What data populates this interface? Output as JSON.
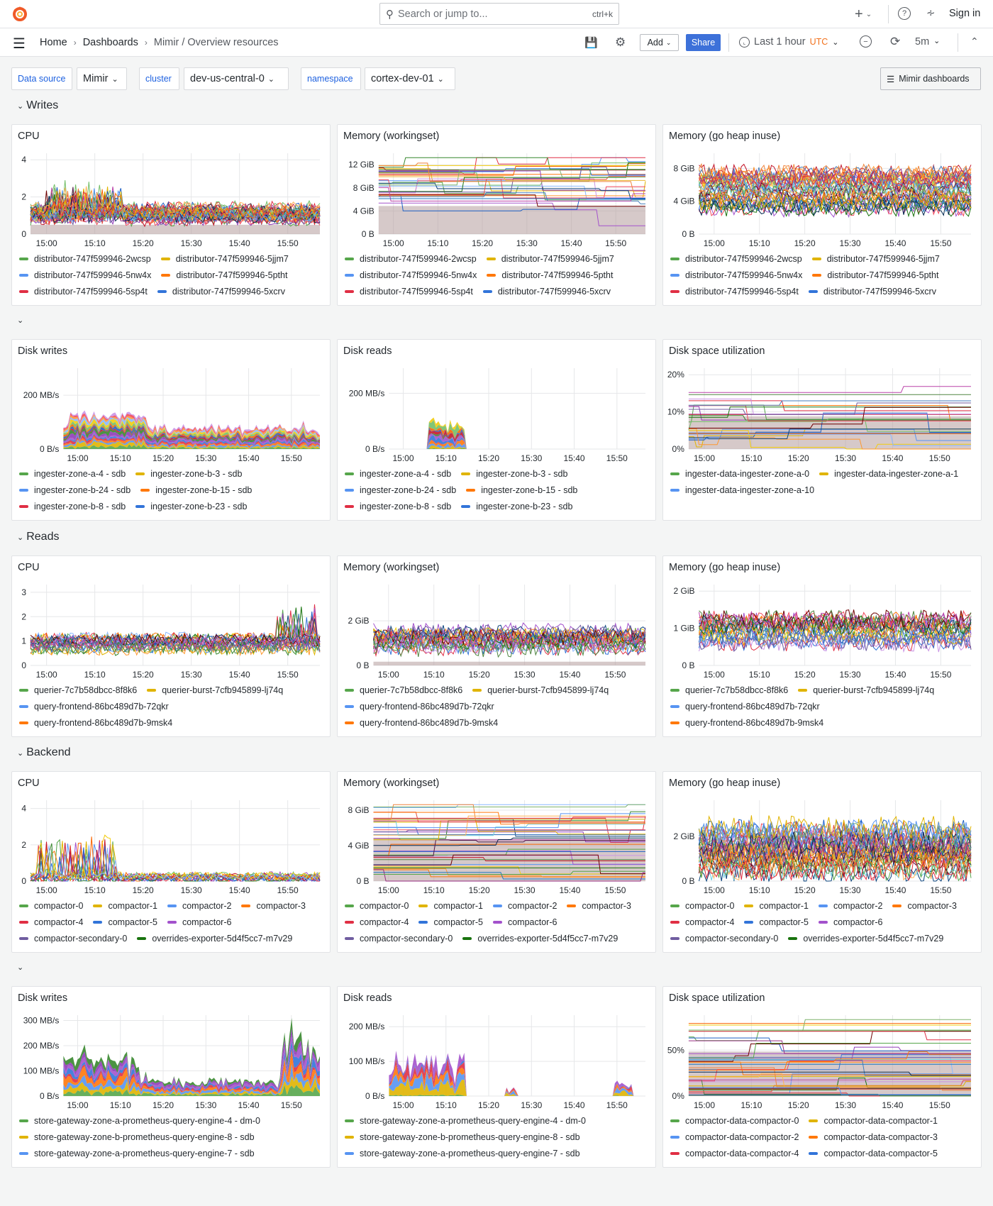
{
  "topbar": {
    "search_placeholder": "Search or jump to...",
    "search_shortcut": "ctrl+k",
    "sign_in": "Sign in"
  },
  "breadcrumb": {
    "home": "Home",
    "dashboards": "Dashboards",
    "current": "Mimir / Overview resources"
  },
  "toolbar": {
    "add": "Add",
    "share": "Share",
    "time_range": "Last 1 hour",
    "timezone": "UTC",
    "refresh": "5m"
  },
  "variables": {
    "datasource_label": "Data source",
    "datasource_value": "Mimir",
    "cluster_label": "cluster",
    "cluster_value": "dev-us-central-0",
    "namespace_label": "namespace",
    "namespace_value": "cortex-dev-01",
    "dashboards_link": "Mimir dashboards"
  },
  "sections": {
    "writes": "Writes",
    "reads": "Reads",
    "backend": "Backend"
  },
  "colors": {
    "accent": "#3d71d9",
    "utc": "#f2711c",
    "fill": "#b49c9c"
  },
  "time_range": {
    "from": "14:56:40",
    "to": "15:56:40"
  },
  "chart_data": [
    {
      "title": "CPU",
      "type": "line",
      "ylim": [
        0,
        4.2
      ],
      "y_ticks": [
        {
          "v": 0,
          "l": "0"
        },
        {
          "v": 2,
          "l": "2"
        },
        {
          "v": 4,
          "l": "4"
        }
      ],
      "x_ticks": [
        "15:00",
        "15:10",
        "15:20",
        "15:30",
        "15:40",
        "15:50"
      ],
      "legend": [
        {
          "label": "distributor-747f599946-2wcsp",
          "color": "#56A64B"
        },
        {
          "label": "distributor-747f599946-5jjm7",
          "color": "#E0B400"
        },
        {
          "label": "distributor-747f599946-5nw4x",
          "color": "#5794F2"
        },
        {
          "label": "distributor-747f599946-5ptht",
          "color": "#FF780A"
        },
        {
          "label": "distributor-747f599946-5sp4t",
          "color": "#E02F44"
        },
        {
          "label": "distributor-747f599946-5xcrv",
          "color": "#3274D9"
        }
      ]
    },
    {
      "title": "Memory (workingset)",
      "type": "step",
      "ylim": [
        0,
        13.5
      ],
      "y_ticks": [
        {
          "v": 0,
          "l": "0 B"
        },
        {
          "v": 4,
          "l": "4 GiB"
        },
        {
          "v": 8,
          "l": "8 GiB"
        },
        {
          "v": 12,
          "l": "12 GiB"
        }
      ],
      "x_ticks": [
        "15:00",
        "15:10",
        "15:20",
        "15:30",
        "15:40",
        "15:50"
      ],
      "legend": [
        {
          "label": "distributor-747f599946-2wcsp",
          "color": "#56A64B"
        },
        {
          "label": "distributor-747f599946-5jjm7",
          "color": "#E0B400"
        },
        {
          "label": "distributor-747f599946-5nw4x",
          "color": "#5794F2"
        },
        {
          "label": "distributor-747f599946-5ptht",
          "color": "#FF780A"
        },
        {
          "label": "distributor-747f599946-5sp4t",
          "color": "#E02F44"
        },
        {
          "label": "distributor-747f599946-5xcrv",
          "color": "#3274D9"
        }
      ]
    },
    {
      "title": "Memory (go heap inuse)",
      "type": "line",
      "ylim": [
        0,
        9.5
      ],
      "y_ticks": [
        {
          "v": 0,
          "l": "0 B"
        },
        {
          "v": 4,
          "l": "4 GiB"
        },
        {
          "v": 8,
          "l": "8 GiB"
        }
      ],
      "x_ticks": [
        "15:00",
        "15:10",
        "15:20",
        "15:30",
        "15:40",
        "15:50"
      ],
      "legend": [
        {
          "label": "distributor-747f599946-2wcsp",
          "color": "#56A64B"
        },
        {
          "label": "distributor-747f599946-5jjm7",
          "color": "#E0B400"
        },
        {
          "label": "distributor-747f599946-5nw4x",
          "color": "#5794F2"
        },
        {
          "label": "distributor-747f599946-5ptht",
          "color": "#FF780A"
        },
        {
          "label": "distributor-747f599946-5sp4t",
          "color": "#E02F44"
        },
        {
          "label": "distributor-747f599946-5xcrv",
          "color": "#3274D9"
        }
      ]
    },
    {
      "title": "Disk writes",
      "type": "stacked",
      "ylim": [
        0,
        290
      ],
      "y_ticks": [
        {
          "v": 0,
          "l": "0 B/s"
        },
        {
          "v": 200,
          "l": "200 MB/s"
        }
      ],
      "x_ticks": [
        "15:00",
        "15:10",
        "15:20",
        "15:30",
        "15:40",
        "15:50"
      ],
      "legend": [
        {
          "label": "ingester-zone-a-4 - sdb",
          "color": "#56A64B"
        },
        {
          "label": "ingester-zone-b-3 - sdb",
          "color": "#E0B400"
        },
        {
          "label": "ingester-zone-b-24 - sdb",
          "color": "#5794F2"
        },
        {
          "label": "ingester-zone-b-15 - sdb",
          "color": "#FF780A"
        },
        {
          "label": "ingester-zone-b-8 - sdb",
          "color": "#E02F44"
        },
        {
          "label": "ingester-zone-b-23 - sdb",
          "color": "#3274D9"
        }
      ]
    },
    {
      "title": "Disk reads",
      "type": "stacked",
      "ylim": [
        0,
        280
      ],
      "y_ticks": [
        {
          "v": 0,
          "l": "0 B/s"
        },
        {
          "v": 200,
          "l": "200 MB/s"
        }
      ],
      "x_ticks": [
        "15:00",
        "15:10",
        "15:20",
        "15:30",
        "15:40",
        "15:50"
      ],
      "legend": [
        {
          "label": "ingester-zone-a-4 - sdb",
          "color": "#56A64B"
        },
        {
          "label": "ingester-zone-b-3 - sdb",
          "color": "#E0B400"
        },
        {
          "label": "ingester-zone-b-24 - sdb",
          "color": "#5794F2"
        },
        {
          "label": "ingester-zone-b-15 - sdb",
          "color": "#FF780A"
        },
        {
          "label": "ingester-zone-b-8 - sdb",
          "color": "#E02F44"
        },
        {
          "label": "ingester-zone-b-23 - sdb",
          "color": "#3274D9"
        }
      ]
    },
    {
      "title": "Disk space utilization",
      "type": "step",
      "ylim": [
        0,
        21
      ],
      "y_ticks": [
        {
          "v": 0,
          "l": "0%"
        },
        {
          "v": 10,
          "l": "10%"
        },
        {
          "v": 20,
          "l": "20%"
        }
      ],
      "x_ticks": [
        "15:00",
        "15:10",
        "15:20",
        "15:30",
        "15:40",
        "15:50"
      ],
      "legend": [
        {
          "label": "ingester-data-ingester-zone-a-0",
          "color": "#56A64B"
        },
        {
          "label": "ingester-data-ingester-zone-a-1",
          "color": "#E0B400"
        },
        {
          "label": "ingester-data-ingester-zone-a-10",
          "color": "#5794F2"
        }
      ]
    },
    {
      "title": "CPU",
      "type": "line",
      "ylim": [
        0,
        3.2
      ],
      "y_ticks": [
        {
          "v": 0,
          "l": "0"
        },
        {
          "v": 1,
          "l": "1"
        },
        {
          "v": 2,
          "l": "2"
        },
        {
          "v": 3,
          "l": "3"
        }
      ],
      "x_ticks": [
        "15:00",
        "15:10",
        "15:20",
        "15:30",
        "15:40",
        "15:50"
      ],
      "legend": [
        {
          "label": "querier-7c7b58dbcc-8f8k6",
          "color": "#56A64B"
        },
        {
          "label": "querier-burst-7cfb945899-lj74q",
          "color": "#E0B400"
        },
        {
          "label": "query-frontend-86bc489d7b-72qkr",
          "color": "#5794F2"
        },
        {
          "label": "query-frontend-86bc489d7b-9msk4",
          "color": "#FF780A"
        }
      ]
    },
    {
      "title": "Memory (workingset)",
      "type": "line",
      "ylim": [
        0,
        3.5
      ],
      "y_ticks": [
        {
          "v": 0,
          "l": "0 B"
        },
        {
          "v": 2,
          "l": "2 GiB"
        }
      ],
      "x_ticks": [
        "15:00",
        "15:10",
        "15:20",
        "15:30",
        "15:40",
        "15:50"
      ],
      "legend": [
        {
          "label": "querier-7c7b58dbcc-8f8k6",
          "color": "#56A64B"
        },
        {
          "label": "querier-burst-7cfb945899-lj74q",
          "color": "#E0B400"
        },
        {
          "label": "query-frontend-86bc489d7b-72qkr",
          "color": "#5794F2"
        },
        {
          "label": "query-frontend-86bc489d7b-9msk4",
          "color": "#FF780A"
        }
      ]
    },
    {
      "title": "Memory (go heap inuse)",
      "type": "line",
      "ylim": [
        0,
        2.1
      ],
      "y_ticks": [
        {
          "v": 0,
          "l": "0 B"
        },
        {
          "v": 1,
          "l": "1 GiB"
        },
        {
          "v": 2,
          "l": "2 GiB"
        }
      ],
      "x_ticks": [
        "15:00",
        "15:10",
        "15:20",
        "15:30",
        "15:40",
        "15:50"
      ],
      "legend": [
        {
          "label": "querier-7c7b58dbcc-8f8k6",
          "color": "#56A64B"
        },
        {
          "label": "querier-burst-7cfb945899-lj74q",
          "color": "#E0B400"
        },
        {
          "label": "query-frontend-86bc489d7b-72qkr",
          "color": "#5794F2"
        },
        {
          "label": "query-frontend-86bc489d7b-9msk4",
          "color": "#FF780A"
        }
      ]
    },
    {
      "title": "CPU",
      "type": "line",
      "ylim": [
        0,
        4.3
      ],
      "y_ticks": [
        {
          "v": 0,
          "l": "0"
        },
        {
          "v": 2,
          "l": "2"
        },
        {
          "v": 4,
          "l": "4"
        }
      ],
      "x_ticks": [
        "15:00",
        "15:10",
        "15:20",
        "15:30",
        "15:40",
        "15:50"
      ],
      "legend": [
        {
          "label": "compactor-0",
          "color": "#56A64B"
        },
        {
          "label": "compactor-1",
          "color": "#E0B400"
        },
        {
          "label": "compactor-2",
          "color": "#5794F2"
        },
        {
          "label": "compactor-3",
          "color": "#FF780A"
        },
        {
          "label": "compactor-4",
          "color": "#E02F44"
        },
        {
          "label": "compactor-5",
          "color": "#3274D9"
        },
        {
          "label": "compactor-6",
          "color": "#A352CC"
        },
        {
          "label": "compactor-secondary-0",
          "color": "#705DA0"
        },
        {
          "label": "overrides-exporter-5d4f5cc7-m7v29",
          "color": "#19730E"
        }
      ]
    },
    {
      "title": "Memory (workingset)",
      "type": "step",
      "ylim": [
        0,
        8.8
      ],
      "y_ticks": [
        {
          "v": 0,
          "l": "0 B"
        },
        {
          "v": 4,
          "l": "4 GiB"
        },
        {
          "v": 8,
          "l": "8 GiB"
        }
      ],
      "x_ticks": [
        "15:00",
        "15:10",
        "15:20",
        "15:30",
        "15:40",
        "15:50"
      ],
      "legend": [
        {
          "label": "compactor-0",
          "color": "#56A64B"
        },
        {
          "label": "compactor-1",
          "color": "#E0B400"
        },
        {
          "label": "compactor-2",
          "color": "#5794F2"
        },
        {
          "label": "compactor-3",
          "color": "#FF780A"
        },
        {
          "label": "compactor-4",
          "color": "#E02F44"
        },
        {
          "label": "compactor-5",
          "color": "#3274D9"
        },
        {
          "label": "compactor-6",
          "color": "#A352CC"
        },
        {
          "label": "compactor-secondary-0",
          "color": "#705DA0"
        },
        {
          "label": "overrides-exporter-5d4f5cc7-m7v29",
          "color": "#19730E"
        }
      ]
    },
    {
      "title": "Memory (go heap inuse)",
      "type": "line",
      "ylim": [
        0,
        3.5
      ],
      "y_ticks": [
        {
          "v": 0,
          "l": "0 B"
        },
        {
          "v": 2,
          "l": "2 GiB"
        }
      ],
      "x_ticks": [
        "15:00",
        "15:10",
        "15:20",
        "15:30",
        "15:40",
        "15:50"
      ],
      "legend": [
        {
          "label": "compactor-0",
          "color": "#56A64B"
        },
        {
          "label": "compactor-1",
          "color": "#E0B400"
        },
        {
          "label": "compactor-2",
          "color": "#5794F2"
        },
        {
          "label": "compactor-3",
          "color": "#FF780A"
        },
        {
          "label": "compactor-4",
          "color": "#E02F44"
        },
        {
          "label": "compactor-5",
          "color": "#3274D9"
        },
        {
          "label": "compactor-6",
          "color": "#A352CC"
        },
        {
          "label": "compactor-secondary-0",
          "color": "#705DA0"
        },
        {
          "label": "overrides-exporter-5d4f5cc7-m7v29",
          "color": "#19730E"
        }
      ]
    },
    {
      "title": "Disk writes",
      "type": "stacked",
      "ylim": [
        0,
        310
      ],
      "y_ticks": [
        {
          "v": 0,
          "l": "0 B/s"
        },
        {
          "v": 100,
          "l": "100 MB/s"
        },
        {
          "v": 200,
          "l": "200 MB/s"
        },
        {
          "v": 300,
          "l": "300 MB/s"
        }
      ],
      "x_ticks": [
        "15:00",
        "15:10",
        "15:20",
        "15:30",
        "15:40",
        "15:50"
      ],
      "legend": [
        {
          "label": "store-gateway-zone-a-prometheus-query-engine-4 - dm-0",
          "color": "#56A64B"
        },
        {
          "label": "store-gateway-zone-b-prometheus-query-engine-8 - sdb",
          "color": "#E0B400"
        },
        {
          "label": "store-gateway-zone-a-prometheus-query-engine-7 - sdb",
          "color": "#5794F2"
        }
      ]
    },
    {
      "title": "Disk reads",
      "type": "stacked",
      "ylim": [
        0,
        225
      ],
      "y_ticks": [
        {
          "v": 0,
          "l": "0 B/s"
        },
        {
          "v": 100,
          "l": "100 MB/s"
        },
        {
          "v": 200,
          "l": "200 MB/s"
        }
      ],
      "x_ticks": [
        "15:00",
        "15:10",
        "15:20",
        "15:30",
        "15:40",
        "15:50"
      ],
      "legend": [
        {
          "label": "store-gateway-zone-a-prometheus-query-engine-4 - dm-0",
          "color": "#56A64B"
        },
        {
          "label": "store-gateway-zone-b-prometheus-query-engine-8 - sdb",
          "color": "#E0B400"
        },
        {
          "label": "store-gateway-zone-a-prometheus-query-engine-7 - sdb",
          "color": "#5794F2"
        }
      ]
    },
    {
      "title": "Disk space utilization",
      "type": "step",
      "ylim": [
        0,
        85
      ],
      "y_ticks": [
        {
          "v": 0,
          "l": "0%"
        },
        {
          "v": 50,
          "l": "50%"
        }
      ],
      "x_ticks": [
        "15:00",
        "15:10",
        "15:20",
        "15:30",
        "15:40",
        "15:50"
      ],
      "legend": [
        {
          "label": "compactor-data-compactor-0",
          "color": "#56A64B"
        },
        {
          "label": "compactor-data-compactor-1",
          "color": "#E0B400"
        },
        {
          "label": "compactor-data-compactor-2",
          "color": "#5794F2"
        },
        {
          "label": "compactor-data-compactor-3",
          "color": "#FF780A"
        },
        {
          "label": "compactor-data-compactor-4",
          "color": "#E02F44"
        },
        {
          "label": "compactor-data-compactor-5",
          "color": "#3274D9"
        }
      ]
    }
  ]
}
